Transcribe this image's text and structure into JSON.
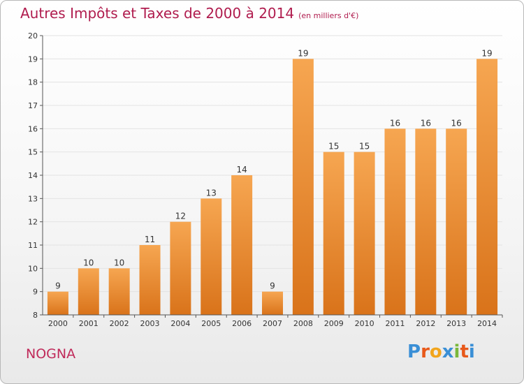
{
  "title": "Autres Impôts et Taxes de 2000 à 2014",
  "subtitle": "(en milliers d'€)",
  "place": "NOGNA",
  "logo": {
    "letters": [
      "P",
      "r",
      "o",
      "x",
      "i",
      "t",
      "i"
    ],
    "colors": [
      "#3a8fd6",
      "#e8591a",
      "#f2a51c",
      "#3a8fd6",
      "#7ab83b",
      "#e8591a",
      "#3a8fd6"
    ]
  },
  "colors": {
    "bar_top": "#f6a651",
    "bar_bottom": "#d9731a",
    "title": "#b01c4e",
    "grid": "#e3e3e3",
    "axis": "#555555"
  },
  "chart_data": {
    "type": "bar",
    "title": "Autres Impôts et Taxes de 2000 à 2014",
    "subtitle": "(en milliers d'€)",
    "categories": [
      "2000",
      "2001",
      "2002",
      "2003",
      "2004",
      "2005",
      "2006",
      "2007",
      "2008",
      "2009",
      "2010",
      "2011",
      "2012",
      "2013",
      "2014"
    ],
    "values": [
      9,
      10,
      10,
      11,
      12,
      13,
      14,
      9,
      19,
      15,
      15,
      16,
      16,
      16,
      19
    ],
    "data_labels": [
      "9",
      "10",
      "10",
      "11",
      "12",
      "13",
      "14",
      "9",
      "19",
      "15",
      "15",
      "16",
      "16",
      "16",
      "19"
    ],
    "yticks": [
      "8",
      "9",
      "10",
      "11",
      "12",
      "13",
      "14",
      "15",
      "16",
      "17",
      "18",
      "19",
      "20"
    ],
    "ylim": [
      8,
      20
    ],
    "xlabel": "",
    "ylabel": "",
    "grid": true,
    "legend": "none"
  }
}
